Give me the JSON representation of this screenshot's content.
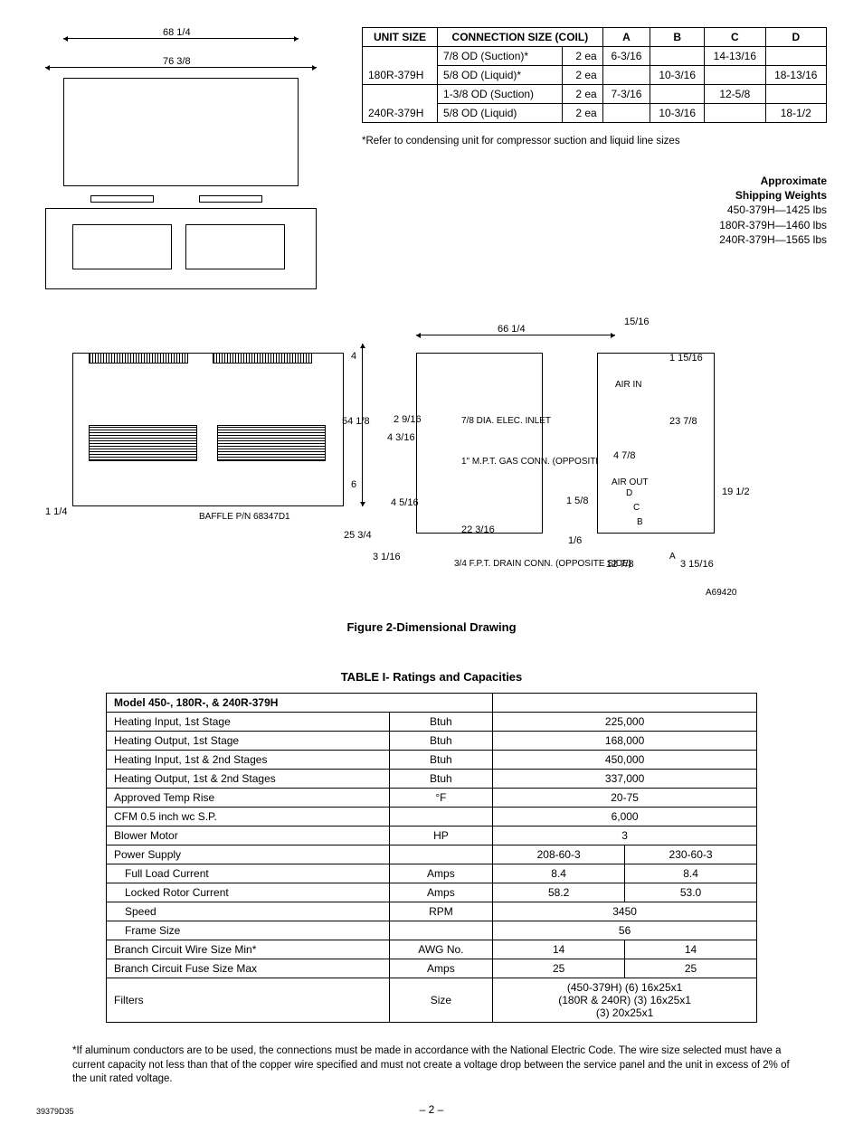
{
  "conn_table": {
    "headers": [
      "UNIT SIZE",
      "CONNECTION SIZE (COIL)",
      "",
      "A",
      "B",
      "C",
      "D"
    ],
    "rows": [
      {
        "unit": "180R-379H",
        "lines": [
          {
            "desc": "7/8 OD (Suction)*",
            "qty": "2 ea",
            "A": "6-3/16",
            "B": "",
            "C": "14-13/16",
            "D": ""
          },
          {
            "desc": "5/8 OD (Liquid)*",
            "qty": "2 ea",
            "A": "",
            "B": "10-3/16",
            "C": "",
            "D": "18-13/16"
          }
        ]
      },
      {
        "unit": "240R-379H",
        "lines": [
          {
            "desc": "1-3/8 OD (Suction)",
            "qty": "2 ea",
            "A": "7-3/16",
            "B": "",
            "C": "12-5/8",
            "D": ""
          },
          {
            "desc": "5/8 OD (Liquid)",
            "qty": "2 ea",
            "A": "",
            "B": "10-3/16",
            "C": "",
            "D": "18-1/2"
          }
        ]
      }
    ],
    "footnote": "*Refer to condensing unit for compressor suction and liquid line sizes"
  },
  "weights": {
    "heading1": "Approximate",
    "heading2": "Shipping Weights",
    "items": [
      "450-379H—1425 lbs",
      "180R-379H—1460 lbs",
      "240R-379H—1565 lbs"
    ]
  },
  "dim_labels": {
    "w1": "68 1/4",
    "w2": "76 3/8",
    "h1": "54 1/8",
    "h2": "4",
    "h3": "6",
    "h4": "25 3/4",
    "h5": "22 3/16",
    "w3": "66 1/4",
    "a1": "2 9/16",
    "a2": "4 3/16",
    "a3": "4 5/16",
    "a4": "3 1/16",
    "right_top": "15/16",
    "right_h1": "1 15/16",
    "right_h2": "23 7/8",
    "right_h3": "4 7/8",
    "right_h4": "19 1/2",
    "right_w1": "12 7/8",
    "right_w2": "3 15/16",
    "left_v": "1 1/4",
    "s1": "1 5/8",
    "s2": "1/6",
    "elec": "7/8 DIA. ELEC. INLET",
    "gas": "1\" M.P.T. GAS CONN. (OPPOSITE SIDE)",
    "drain": "3/4 F.P.T. DRAIN CONN. (OPPOSITE SIDE)",
    "baffle": "BAFFLE P/N 68347D1",
    "airin": "AIR IN",
    "airout": "AIR OUT",
    "letters": [
      "A",
      "B",
      "C",
      "D"
    ],
    "drawing_id": "A69420"
  },
  "fig_caption": "Figure 2-Dimensional Drawing",
  "ratings": {
    "title": "TABLE I- Ratings and Capacities",
    "model_header": "Model 450-, 180R-, & 240R-379H",
    "rows_single": [
      {
        "label": "Heating Input, 1st Stage",
        "unit": "Btuh",
        "val": "225,000"
      },
      {
        "label": "Heating Output, 1st Stage",
        "unit": "Btuh",
        "val": "168,000"
      },
      {
        "label": "Heating Input, 1st & 2nd Stages",
        "unit": "Btuh",
        "val": "450,000"
      },
      {
        "label": "Heating Output, 1st & 2nd Stages",
        "unit": "Btuh",
        "val": "337,000"
      },
      {
        "label": "Approved Temp Rise",
        "unit": "°F",
        "val": "20-75"
      },
      {
        "label": "CFM 0.5 inch wc S.P.",
        "unit": "",
        "val": "6,000"
      },
      {
        "label": "Blower Motor",
        "unit": "HP",
        "val": "3"
      }
    ],
    "rows_double": [
      {
        "label": "Power Supply",
        "unit": "",
        "v1": "208-60-3",
        "v2": "230-60-3",
        "indent": false
      },
      {
        "label": "Full Load Current",
        "unit": "Amps",
        "v1": "8.4",
        "v2": "8.4",
        "indent": true
      },
      {
        "label": "Locked Rotor Current",
        "unit": "Amps",
        "v1": "58.2",
        "v2": "53.0",
        "indent": true
      },
      {
        "label": "Speed",
        "unit": "RPM",
        "v1": "3450",
        "v2": "",
        "span": true,
        "indent": true
      },
      {
        "label": "Frame Size",
        "unit": "",
        "v1": "56",
        "v2": "",
        "span": true,
        "indent": true
      },
      {
        "label": "Branch Circuit Wire Size Min*",
        "unit": "AWG No.",
        "v1": "14",
        "v2": "14",
        "indent": false
      },
      {
        "label": "Branch Circuit Fuse Size Max",
        "unit": "Amps",
        "v1": "25",
        "v2": "25",
        "indent": false
      }
    ],
    "filters": {
      "label": "Filters",
      "unit": "Size",
      "lines": [
        "(450-379H) (6) 16x25x1",
        "(180R & 240R) (3) 16x25x1",
        "(3) 20x25x1"
      ]
    },
    "footnote": "*If aluminum conductors are to be used, the connections must be made in accordance with the National Electric Code. The wire size selected must have a current capacity not less than that of the copper wire specified and must not create a voltage drop between the service panel and the unit in excess of 2% of the unit rated voltage."
  },
  "page_number": "– 2 –",
  "doc_id": "39379D35"
}
